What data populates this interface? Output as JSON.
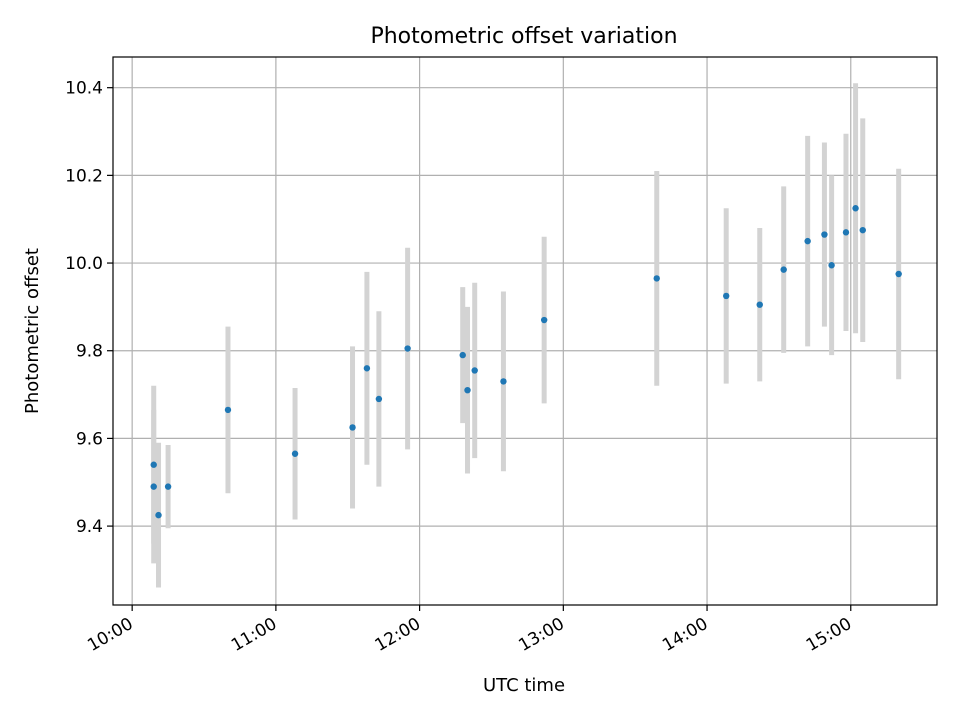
{
  "chart_data": {
    "type": "scatter",
    "title": "Photometric offset variation",
    "xlabel": "UTC time",
    "ylabel": "Photometric offset",
    "x_ticks": [
      "10:00",
      "11:00",
      "12:00",
      "13:00",
      "14:00",
      "15:00"
    ],
    "y_ticks": [
      "9.4",
      "9.6",
      "9.8",
      "10.0",
      "10.2",
      "10.4"
    ],
    "xlim": [
      "09:52",
      "15:36"
    ],
    "ylim": [
      9.22,
      10.47
    ],
    "grid": true,
    "colors": {
      "point": "#1f77b4",
      "errorbar": "#d3d3d3",
      "grid": "#b0b0b0"
    },
    "points": [
      {
        "x": "10:09",
        "y": 9.54,
        "err": 0.18
      },
      {
        "x": "10:09",
        "y": 9.49,
        "err": 0.175
      },
      {
        "x": "10:11",
        "y": 9.425,
        "err": 0.165
      },
      {
        "x": "10:15",
        "y": 9.49,
        "err": 0.095
      },
      {
        "x": "10:40",
        "y": 9.665,
        "err": 0.19
      },
      {
        "x": "11:08",
        "y": 9.565,
        "err": 0.15
      },
      {
        "x": "11:32",
        "y": 9.625,
        "err": 0.185
      },
      {
        "x": "11:38",
        "y": 9.76,
        "err": 0.22
      },
      {
        "x": "11:43",
        "y": 9.69,
        "err": 0.2
      },
      {
        "x": "11:55",
        "y": 9.805,
        "err": 0.23
      },
      {
        "x": "12:18",
        "y": 9.79,
        "err": 0.155
      },
      {
        "x": "12:20",
        "y": 9.71,
        "err": 0.19
      },
      {
        "x": "12:23",
        "y": 9.755,
        "err": 0.2
      },
      {
        "x": "12:35",
        "y": 9.73,
        "err": 0.205
      },
      {
        "x": "12:52",
        "y": 9.87,
        "err": 0.19
      },
      {
        "x": "13:39",
        "y": 9.965,
        "err": 0.245
      },
      {
        "x": "14:08",
        "y": 9.925,
        "err": 0.2
      },
      {
        "x": "14:22",
        "y": 9.905,
        "err": 0.175
      },
      {
        "x": "14:32",
        "y": 9.985,
        "err": 0.19
      },
      {
        "x": "14:42",
        "y": 10.05,
        "err": 0.24
      },
      {
        "x": "14:49",
        "y": 10.065,
        "err": 0.21
      },
      {
        "x": "14:52",
        "y": 9.995,
        "err": 0.205
      },
      {
        "x": "14:58",
        "y": 10.07,
        "err": 0.225
      },
      {
        "x": "15:02",
        "y": 10.125,
        "err": 0.285
      },
      {
        "x": "15:05",
        "y": 10.075,
        "err": 0.255
      },
      {
        "x": "15:20",
        "y": 9.975,
        "err": 0.24
      }
    ]
  }
}
